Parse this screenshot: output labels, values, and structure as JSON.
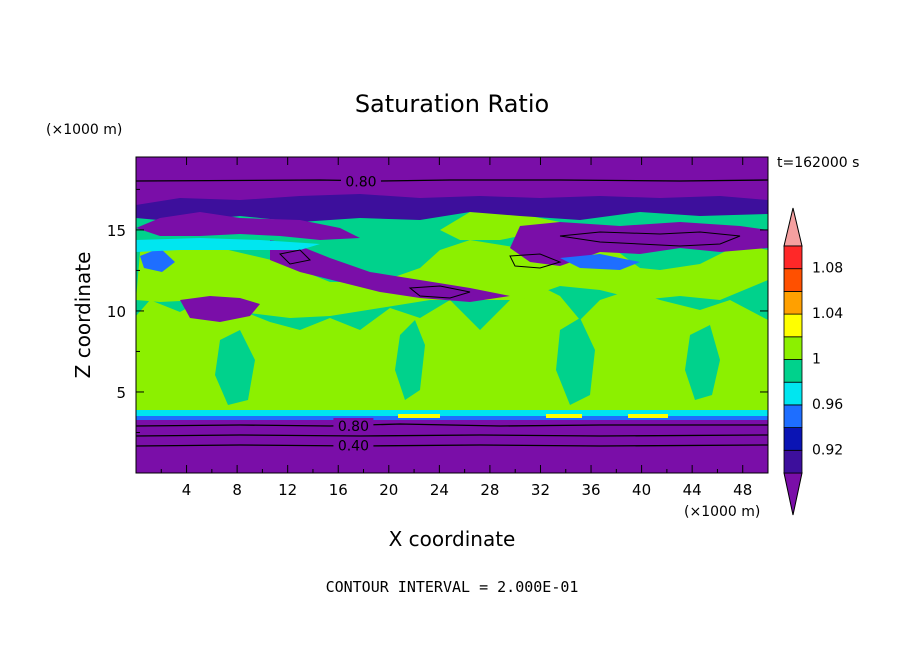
{
  "chart_data": {
    "type": "heatmap",
    "title": "Saturation Ratio",
    "xlabel": "X coordinate",
    "ylabel": "Z coordinate",
    "x_unit": "(×1000 m)",
    "y_unit": "(×1000 m)",
    "time_label": "t=162000 s",
    "footer": "CONTOUR INTERVAL = 2.000E-01",
    "xlim": [
      0,
      50
    ],
    "ylim": [
      0,
      19.5
    ],
    "x_ticks": [
      4,
      8,
      12,
      16,
      20,
      24,
      28,
      32,
      36,
      40,
      44,
      48
    ],
    "y_ticks": [
      5,
      10,
      15
    ],
    "contour_labels": [
      {
        "text": "0.80",
        "x": 17.8,
        "z": 18.0
      },
      {
        "text": "0.80",
        "x": 17.2,
        "z": 2.9
      },
      {
        "text": "0.40",
        "x": 17.2,
        "z": 1.7
      }
    ],
    "colorbar": {
      "levels": [
        0.92,
        0.94,
        0.96,
        0.98,
        1.0,
        1.02,
        1.04,
        1.06,
        1.08,
        1.1
      ],
      "labels": [
        "0.92",
        "0.96",
        "1",
        "1.04",
        "1.08"
      ],
      "colors": [
        "#3d0f9c",
        "#0a14b4",
        "#1e6eff",
        "#00e6f0",
        "#00d28c",
        "#8cf000",
        "#ffff00",
        "#ffa000",
        "#ff5000",
        "#ff2828"
      ],
      "under_color": "#7a0ea8",
      "over_color": "#f5a0a0"
    },
    "regions_note": "",
    "bands": [
      {
        "name": "",
        "z_top": 3.3,
        "z_bottom": 0.0,
        "value": "below"
      },
      {
        "name": "",
        "z_top": 19.5,
        "z_bottom": 17.2,
        "value": "below"
      }
    ]
  }
}
